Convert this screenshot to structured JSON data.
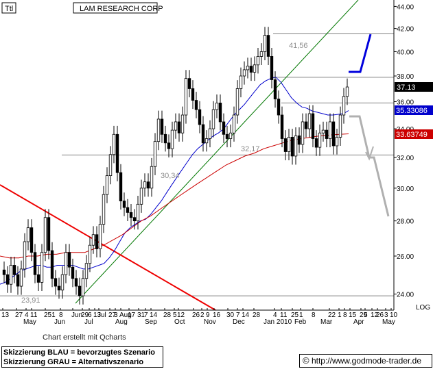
{
  "header": {
    "ticker_box": "Ttl",
    "title": "LAM RESEARCH CORP"
  },
  "footer": {
    "credit": "Chart erstellt mit Qcharts",
    "legend_line1": "Skizzierung BLAU = bevorzugtes Szenario",
    "legend_line2": "Skizzierung GRAU = Alternativszenario",
    "copyright_symbol": "©",
    "website": "http://www.godmode-trader.de"
  },
  "chart_data": {
    "type": "candlestick",
    "title": "LAM RESEARCH CORP",
    "yscale": "log",
    "scale_label": "LOG",
    "ylim": [
      23.2,
      44.6
    ],
    "y_ticks": [
      "44.00",
      "42.00",
      "40.00",
      "38.00",
      "36.00",
      "34.00",
      "32.00",
      "30.00",
      "28.00",
      "26.00",
      "24.00"
    ],
    "x_tick_labels_top": [
      "13",
      "27",
      "4",
      "11",
      "251",
      "8",
      "Jun",
      "29",
      "6",
      "13",
      "Jul",
      "27",
      "3",
      "Aug",
      "17",
      "31",
      "7",
      "14",
      "28",
      "5",
      "12",
      "26",
      "2",
      "9",
      "16",
      "30",
      "7",
      "14",
      "28",
      "4",
      "11",
      "25",
      "1",
      "8",
      "22",
      "1",
      "8",
      "15",
      "29",
      "5",
      "12",
      "26",
      "3",
      "10"
    ],
    "x_tick_labels_bottom": [
      "May",
      "Jun",
      "Jul",
      "Aug",
      "Sep",
      "Oct",
      "Nov",
      "Dec",
      "Jan 2010",
      "Feb",
      "Mar",
      "Apr",
      "May"
    ],
    "price_labels": {
      "last": "37.13",
      "ma_short": "35.33086",
      "ma_long": "33.63749"
    },
    "annotations": [
      "41,56",
      "32,17",
      "30,34",
      "23,91"
    ],
    "horizontal_levels": [
      41.56,
      37.9,
      35.9,
      32.17,
      23.91
    ],
    "close": [
      25.0,
      24.5,
      25.5,
      25.0,
      24.4,
      25.3,
      26.8,
      27.6,
      26.2,
      25.0,
      24.6,
      26.2,
      28.2,
      26.3,
      24.8,
      24.4,
      24.2,
      25.0,
      26.2,
      25.4,
      24.8,
      24.4,
      23.91,
      24.8,
      25.6,
      26.6,
      27.2,
      26.4,
      27.8,
      29.6,
      30.8,
      32.2,
      33.6,
      31.0,
      29.2,
      28.8,
      28.5,
      28.2,
      28.0,
      29.0,
      30.0,
      30.4,
      30.0,
      31.4,
      33.1,
      34.7,
      33.6,
      33.0,
      32.6,
      33.9,
      34.5,
      33.7,
      35.0,
      37.8,
      37.0,
      36.1,
      35.4,
      34.3,
      33.0,
      33.3,
      34.0,
      35.4,
      35.9,
      34.5,
      33.6,
      33.3,
      33.7,
      35.0,
      37.0,
      38.0,
      38.5,
      38.8,
      38.3,
      38.9,
      39.6,
      40.0,
      41.4,
      39.6,
      37.7,
      36.2,
      35.0,
      33.3,
      32.4,
      33.4,
      32.1,
      33.5,
      32.9,
      34.5,
      34.0,
      35.1,
      33.3,
      32.7,
      33.7,
      33.9,
      33.3,
      34.5,
      32.8,
      33.4,
      35.0,
      36.4,
      37.13
    ],
    "moving_averages": [
      {
        "name": "MA short",
        "color": "#0000cc",
        "values": [
          24.5,
          24.6,
          24.8,
          25.0,
          25.2,
          25.3,
          25.4,
          25.5,
          25.5,
          25.4,
          25.4,
          25.5,
          25.5,
          25.5,
          25.5,
          25.4,
          25.3,
          25.3,
          25.4,
          25.5,
          25.6,
          25.9,
          26.3,
          26.8,
          27.3,
          27.6,
          27.8,
          28.0,
          28.1,
          28.4,
          28.8,
          29.2,
          29.7,
          30.2,
          30.7,
          31.2,
          31.7,
          32.2,
          32.6,
          32.9,
          33.2,
          33.5,
          33.7,
          34.0,
          34.5,
          35.0,
          35.4,
          35.8,
          36.3,
          36.8,
          37.3,
          37.6,
          37.8,
          37.9,
          37.5,
          36.9,
          36.3,
          35.9,
          35.6,
          35.5,
          35.3,
          35.2,
          35.1,
          35.0,
          35.0,
          35.05,
          35.1,
          35.33086
        ]
      },
      {
        "name": "MA long",
        "color": "#cc0000",
        "values": [
          26.0,
          25.9,
          25.9,
          26.0,
          26.0,
          26.1,
          26.1,
          26.2,
          26.2,
          26.2,
          26.4,
          26.6,
          26.9,
          27.2,
          27.6,
          28.0,
          28.3,
          28.7,
          29.1,
          29.5,
          29.9,
          30.3,
          30.7,
          31.1,
          31.5,
          31.8,
          32.1,
          32.3,
          32.6,
          32.8,
          33.0,
          33.2,
          33.3,
          33.4,
          33.5,
          33.55,
          33.6,
          33.63749
        ]
      }
    ],
    "trend_lines": [
      {
        "name": "support",
        "color": "#007700",
        "from": {
          "x": "Jun 4",
          "y": 23.91
        },
        "to": {
          "x": "Feb 10",
          "y": 46.0
        }
      },
      {
        "name": "resistance",
        "color": "#ee0000",
        "from": {
          "x": "May 1",
          "y": 27.8
        },
        "to": {
          "x": "Nov 5",
          "y": 23.3
        }
      }
    ],
    "scenarios": [
      {
        "name": "bevorzugtes Szenario",
        "color": "#0000dd",
        "path": [
          [
            37.9,
            "Mar 29"
          ],
          [
            37.9,
            "Apr 12"
          ],
          [
            41.6,
            "Apr 26"
          ]
        ]
      },
      {
        "name": "Alternativszenario",
        "color": "#b0b0b0",
        "path": [
          [
            34.3,
            "Mar 15"
          ],
          [
            34.3,
            "Mar 22"
          ],
          [
            32.3,
            "Apr 5"
          ],
          [
            32.3,
            "Apr 12"
          ],
          [
            28.3,
            "Apr 26"
          ]
        ]
      }
    ]
  },
  "colors": {
    "background": "#ffffff",
    "candle_up": "#ffffff",
    "candle_down": "#000000",
    "grid": "#808080",
    "last_price_bg": "#000000",
    "ma_short_bg": "#0000cc",
    "ma_long_bg": "#cc0000",
    "annotation_text": "#8c8c8c"
  }
}
